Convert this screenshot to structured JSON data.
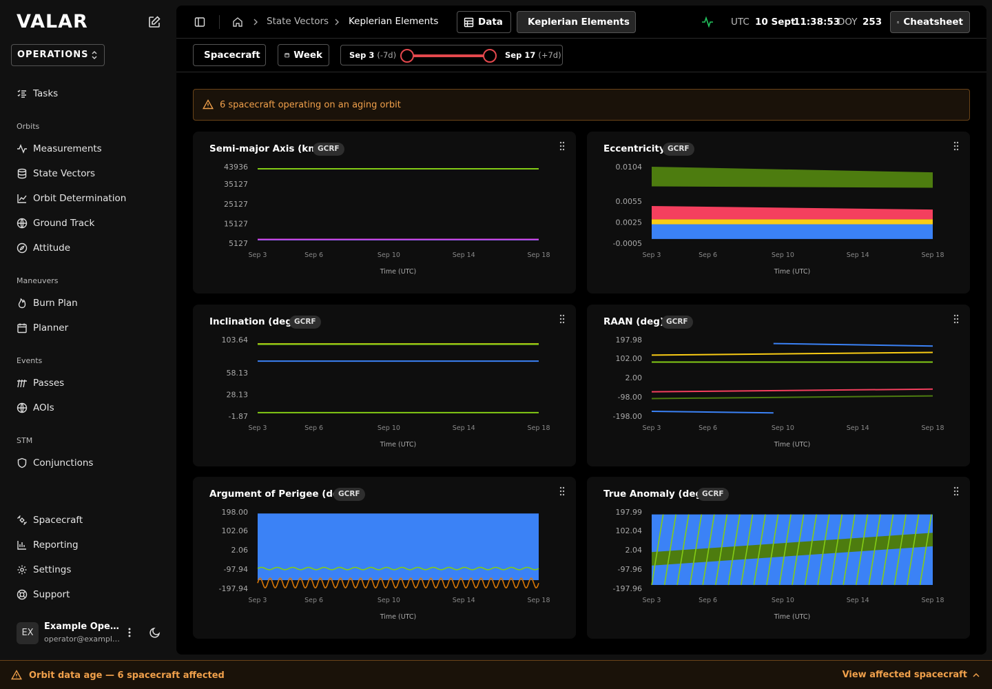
{
  "app": {
    "logo": "VALAR"
  },
  "org": {
    "selected": "OPERATIONS"
  },
  "nav": {
    "top": [
      {
        "label": "Tasks",
        "icon": "tasks-icon"
      }
    ],
    "sections": [
      {
        "title": "Orbits",
        "items": [
          {
            "label": "Measurements",
            "icon": "activity-icon"
          },
          {
            "label": "State Vectors",
            "icon": "database-icon"
          },
          {
            "label": "Orbit Determination",
            "icon": "line-chart-icon"
          },
          {
            "label": "Ground Track",
            "icon": "globe-icon"
          },
          {
            "label": "Attitude",
            "icon": "compass-icon"
          }
        ]
      },
      {
        "title": "Maneuvers",
        "items": [
          {
            "label": "Burn Plan",
            "icon": "flame-icon"
          },
          {
            "label": "Planner",
            "icon": "calendar-icon"
          }
        ]
      },
      {
        "title": "Events",
        "items": [
          {
            "label": "Passes",
            "icon": "passes-icon"
          },
          {
            "label": "AOIs",
            "icon": "globe-icon"
          }
        ]
      },
      {
        "title": "STM",
        "items": [
          {
            "label": "Conjunctions",
            "icon": "shield-icon"
          }
        ]
      }
    ],
    "bottom": [
      {
        "label": "Spacecraft",
        "icon": "satellite-icon"
      },
      {
        "label": "Reporting",
        "icon": "bar-chart-icon"
      },
      {
        "label": "Settings",
        "icon": "gear-icon"
      },
      {
        "label": "Support",
        "icon": "lifebuoy-icon"
      }
    ]
  },
  "user": {
    "initials": "EX",
    "name": "Example Operator",
    "email": "operator@example.com"
  },
  "breadcrumb": {
    "first": "State Vectors",
    "second": "Keplerian Elements"
  },
  "view_buttons": {
    "data": "Data",
    "keplerian": "Keplerian Elements"
  },
  "clock": {
    "tz": "UTC",
    "date": "10 Sept",
    "time": "11:38:53",
    "doy_label": "DOY",
    "doy": "253"
  },
  "cheatsheet": "Cheatsheet",
  "filters": {
    "spacecraft": "Spacecraft",
    "period": "Week",
    "range_start": "Sep 3",
    "range_start_offset": "(-7d)",
    "range_end": "Sep 17",
    "range_end_offset": "(+7d)"
  },
  "alert": {
    "text": "6 spacecraft operating on an aging orbit"
  },
  "footer": {
    "message": "Orbit data age — 6 spacecraft affected",
    "link": "View affected spacecraft"
  },
  "colors": {
    "accent_red": "#e5484d",
    "warning": "#f0a04b",
    "green": "#84cc16",
    "blue": "#3b82f6",
    "yellow": "#facc15",
    "dark_green": "#4d7c0f",
    "magenta": "#d946ef",
    "orange": "#f59e0b",
    "pink": "#f43f5e"
  },
  "chart_data": [
    {
      "type": "line",
      "title": "Semi-major Axis (km)",
      "frame": "GCRF",
      "xlabel": "Time (UTC)",
      "xticks": [
        "Sep 3",
        "Sep 6",
        "Sep 10",
        "Sep 14",
        "Sep 18"
      ],
      "yticks": [
        "43936",
        "35127",
        "25127",
        "15127",
        "5127"
      ],
      "ylim": [
        5127,
        43936
      ],
      "series": [
        {
          "color": "#84cc16",
          "x": [
            "Sep 3",
            "Sep 18"
          ],
          "y": [
            42900,
            42900
          ]
        },
        {
          "color": "#3b82f6",
          "x": [
            "Sep 3",
            "Sep 18"
          ],
          "y": [
            6900,
            6900
          ]
        },
        {
          "color": "#d946ef",
          "x": [
            "Sep 3",
            "Sep 18"
          ],
          "y": [
            7050,
            7050
          ]
        }
      ]
    },
    {
      "type": "area",
      "title": "Eccentricity",
      "frame": "GCRF",
      "xlabel": "Time (UTC)",
      "xticks": [
        "Sep 3",
        "Sep 6",
        "Sep 10",
        "Sep 14",
        "Sep 18"
      ],
      "yticks": [
        "0.0104",
        "0.0055",
        "0.0025",
        "-0.0005"
      ],
      "ylim": [
        -0.0005,
        0.0104
      ],
      "bands": [
        {
          "color": "#4d7c0f",
          "lo": [
            0.0076,
            0.0074
          ],
          "hi": [
            0.0104,
            0.0096
          ]
        },
        {
          "color": "#f43f5e",
          "lo": [
            0.0029,
            0.0029
          ],
          "hi": [
            0.0048,
            0.0043
          ]
        },
        {
          "color": "#facc15",
          "lo": [
            0.0022,
            0.0022
          ],
          "hi": [
            0.0029,
            0.0029
          ]
        },
        {
          "color": "#3b82f6",
          "lo": [
            0.0001,
            0.0001
          ],
          "hi": [
            0.0022,
            0.0022
          ]
        }
      ]
    },
    {
      "type": "line",
      "title": "Inclination (deg)",
      "frame": "GCRF",
      "xlabel": "Time (UTC)",
      "xticks": [
        "Sep 3",
        "Sep 6",
        "Sep 10",
        "Sep 14",
        "Sep 18"
      ],
      "yticks": [
        "103.64",
        "58.13",
        "28.13",
        "-1.87"
      ],
      "ylim": [
        -1.87,
        103.64
      ],
      "series": [
        {
          "color": "#facc15",
          "x": [
            "Sep 3",
            "Sep 18"
          ],
          "y": [
            97.8,
            97.8
          ]
        },
        {
          "color": "#84cc16",
          "x": [
            "Sep 3",
            "Sep 18"
          ],
          "y": [
            97.3,
            97.3
          ]
        },
        {
          "color": "#3b82f6",
          "x": [
            "Sep 3",
            "Sep 18"
          ],
          "y": [
            74.0,
            74.0
          ]
        },
        {
          "color": "#84cc16",
          "x": [
            "Sep 3",
            "Sep 18"
          ],
          "y": [
            3.0,
            3.0
          ]
        }
      ]
    },
    {
      "type": "line",
      "title": "RAAN (deg)",
      "frame": "GCRF",
      "xlabel": "Time (UTC)",
      "xticks": [
        "Sep 3",
        "Sep 6",
        "Sep 10",
        "Sep 14",
        "Sep 18"
      ],
      "yticks": [
        "197.98",
        "102.00",
        "2.00",
        "-98.00",
        "-198.00"
      ],
      "ylim": [
        -198,
        197.98
      ],
      "series": [
        {
          "color": "#3b82f6",
          "x": [
            "Sep 9.5",
            "Sep 18"
          ],
          "y": [
            178,
            165
          ]
        },
        {
          "color": "#3b82f6",
          "x": [
            "Sep 3",
            "Sep 9.5"
          ],
          "y": [
            -173,
            -181
          ]
        },
        {
          "color": "#facc15",
          "x": [
            "Sep 3",
            "Sep 18"
          ],
          "y": [
            118,
            132
          ]
        },
        {
          "color": "#84cc16",
          "x": [
            "Sep 3",
            "Sep 18"
          ],
          "y": [
            82,
            82
          ]
        },
        {
          "color": "#f43f5e",
          "x": [
            "Sep 3",
            "Sep 18"
          ],
          "y": [
            -72,
            -58
          ]
        },
        {
          "color": "#4d7c0f",
          "x": [
            "Sep 3",
            "Sep 18"
          ],
          "y": [
            -107,
            -93
          ]
        }
      ]
    },
    {
      "type": "area",
      "title": "Argument of Perigee (deg)",
      "frame": "GCRF",
      "xlabel": "Time (UTC)",
      "xticks": [
        "Sep 3",
        "Sep 6",
        "Sep 10",
        "Sep 14",
        "Sep 18"
      ],
      "yticks": [
        "198.00",
        "102.06",
        "2.06",
        "-97.94",
        "-197.94"
      ],
      "ylim": [
        -197.94,
        198
      ],
      "bands": [
        {
          "color": "#3b82f6",
          "lo": [
            -155,
            -155
          ],
          "hi": [
            190,
            190
          ]
        }
      ],
      "oscillations": [
        {
          "color": "#84cc16",
          "center": -95,
          "amplitude": 6,
          "cycles": 18
        },
        {
          "color": "#d97706",
          "center": -170,
          "amplitude": 25,
          "cycles": 28
        }
      ]
    },
    {
      "type": "area",
      "title": "True Anomaly (deg)",
      "frame": "GCRF",
      "xlabel": "Time (UTC)",
      "xticks": [
        "Sep 3",
        "Sep 6",
        "Sep 10",
        "Sep 14",
        "Sep 18"
      ],
      "yticks": [
        "197.99",
        "102.04",
        "2.04",
        "-97.96",
        "-197.96"
      ],
      "ylim": [
        -197.96,
        197.99
      ],
      "bands": [
        {
          "color": "#3b82f6",
          "lo": [
            -180,
            -180
          ],
          "hi": [
            185,
            185
          ]
        },
        {
          "color": "#4d7c0f",
          "lo": [
            -80,
            20
          ],
          "hi": [
            -10,
            90
          ]
        }
      ],
      "sawtooth": {
        "color": "#84cc16",
        "cycles": 22
      }
    }
  ]
}
